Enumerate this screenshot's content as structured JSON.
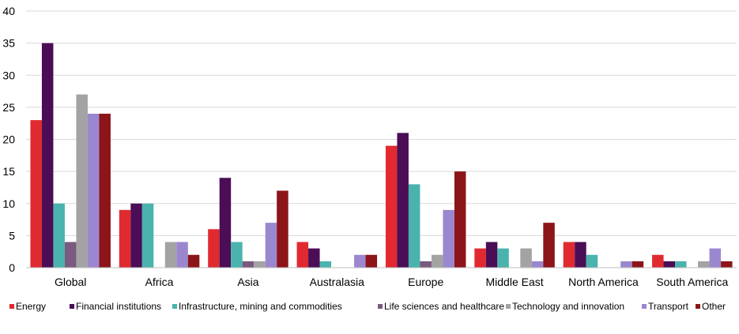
{
  "chart_data": {
    "type": "bar",
    "title": "",
    "xlabel": "",
    "ylabel": "",
    "ylim": [
      0,
      40
    ],
    "yticks": [
      0,
      5,
      10,
      15,
      20,
      25,
      30,
      35,
      40
    ],
    "grid": true,
    "legend_position": "bottom",
    "categories": [
      "Global",
      "Africa",
      "Asia",
      "Australasia",
      "Europe",
      "Middle East",
      "North America",
      "South America"
    ],
    "series": [
      {
        "name": "Energy",
        "color": "#e02a2f",
        "values": [
          23,
          9,
          6,
          4,
          19,
          3,
          4,
          2
        ]
      },
      {
        "name": "Financial institutions",
        "color": "#4a0d56",
        "values": [
          35,
          10,
          14,
          3,
          21,
          4,
          4,
          1
        ]
      },
      {
        "name": "Infrastructure, mining and commodities",
        "color": "#4ab3ad",
        "values": [
          10,
          10,
          4,
          1,
          13,
          3,
          2,
          1
        ]
      },
      {
        "name": "Life sciences and healthcare",
        "color": "#7a5a7e",
        "values": [
          4,
          0,
          1,
          0,
          1,
          0,
          0,
          0
        ]
      },
      {
        "name": "Technology and innovation",
        "color": "#a3a3a3",
        "values": [
          27,
          4,
          1,
          0,
          2,
          3,
          0,
          1
        ]
      },
      {
        "name": "Transport",
        "color": "#9b87cf",
        "values": [
          24,
          4,
          7,
          2,
          9,
          1,
          1,
          3
        ]
      },
      {
        "name": "Other",
        "color": "#8c1519",
        "values": [
          24,
          2,
          12,
          2,
          15,
          7,
          1,
          1
        ]
      }
    ]
  }
}
